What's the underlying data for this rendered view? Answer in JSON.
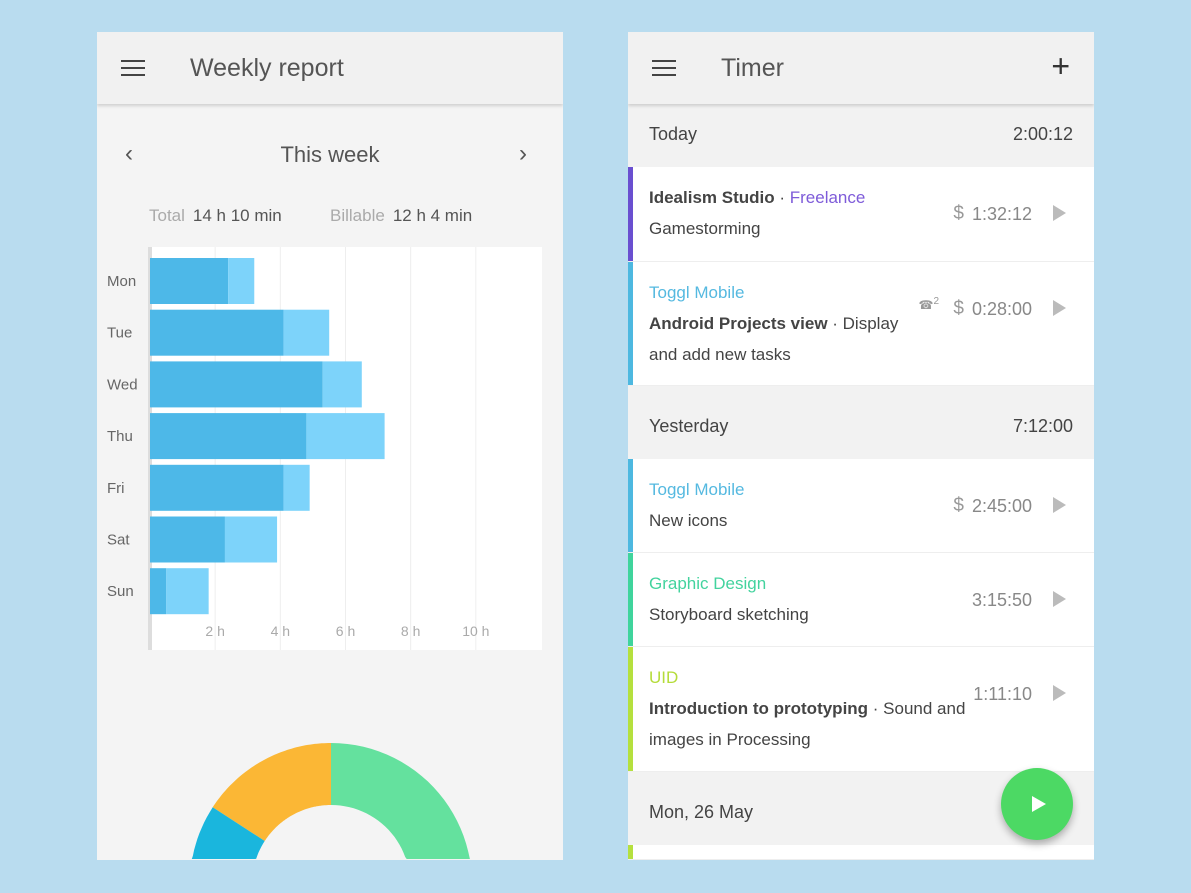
{
  "report": {
    "title": "Weekly report",
    "period": "This week",
    "total_label": "Total",
    "total_value": "14 h 10 min",
    "billable_label": "Billable",
    "billable_value": "12 h 4 min"
  },
  "chart_data": {
    "type": "bar",
    "orientation": "horizontal",
    "stacked": true,
    "categories": [
      "Mon",
      "Tue",
      "Wed",
      "Thu",
      "Fri",
      "Sat",
      "Sun"
    ],
    "series": [
      {
        "values": [
          2.4,
          4.1,
          5.3,
          4.8,
          4.1,
          2.3,
          0.5
        ],
        "color": "#4db8e8"
      },
      {
        "values": [
          0.8,
          1.4,
          1.2,
          2.4,
          0.8,
          1.6,
          1.3
        ],
        "color": "#7dd3fa"
      }
    ],
    "xticks": [
      "2 h",
      "4 h",
      "6 h",
      "8 h",
      "10 h"
    ],
    "xlim": [
      0,
      12
    ],
    "grid": true
  },
  "donut": {
    "segments": [
      {
        "color": "#64e19e"
      },
      {
        "color": "#fbb735"
      },
      {
        "color": "#1ab6dd"
      }
    ]
  },
  "timer": {
    "title": "Timer",
    "groups": [
      {
        "date": "Today",
        "total": "2:00:12",
        "entries": [
          {
            "client": "Idealism Studio",
            "project": "Freelance",
            "project_color": "#7e5bd9",
            "bar_color": "#6a4fd0",
            "description": "Gamestorming",
            "duration": "1:32:12",
            "billable": "$"
          },
          {
            "project": "Toggl Mobile",
            "project_color": "#55b9e0",
            "bar_color": "#4db8e0",
            "task": "Android Projects view",
            "desc1": " · Display",
            "desc2": "and add new tasks",
            "duration": "0:28:00",
            "billable": "$",
            "group_count": "2"
          }
        ]
      },
      {
        "date": "Yesterday",
        "total": "7:12:00",
        "entries": [
          {
            "project": "Toggl Mobile",
            "project_color": "#55b9e0",
            "bar_color": "#4db8e0",
            "description": "New icons",
            "duration": "2:45:00",
            "billable": "$"
          },
          {
            "project": "Graphic Design",
            "project_color": "#43d39e",
            "bar_color": "#3fd49c",
            "description": "Storyboard sketching",
            "duration": "3:15:50"
          },
          {
            "project": "UID",
            "project_color": "#b5dc3a",
            "bar_color": "#b5e03e",
            "task": "Introduction to prototyping",
            "desc1": " · Sound and",
            "desc2": "images in Processing",
            "duration": "1:11:10"
          }
        ]
      },
      {
        "date": "Mon, 26 May"
      }
    ]
  }
}
